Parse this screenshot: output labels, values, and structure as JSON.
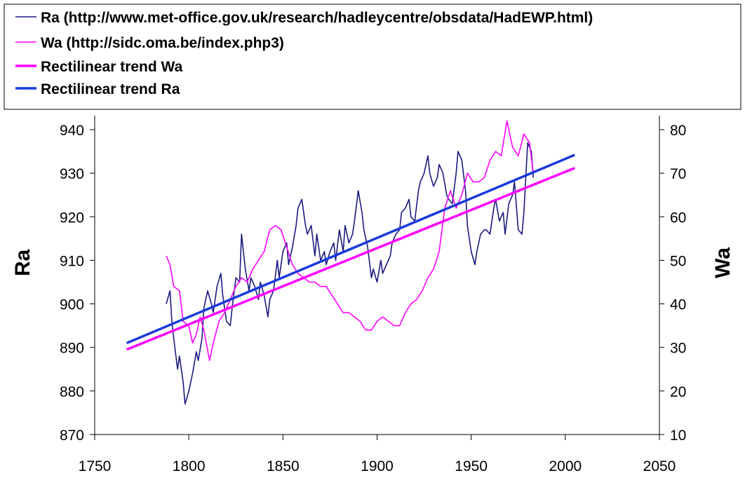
{
  "chart_data": {
    "type": "line",
    "xlim": [
      1750,
      2050
    ],
    "x_ticks": [
      "1750",
      "1800",
      "1850",
      "1900",
      "1950",
      "2000",
      "2050"
    ],
    "y_left": {
      "label": "Ra",
      "lim": [
        870,
        940
      ],
      "ticks": [
        "870",
        "880",
        "890",
        "900",
        "910",
        "920",
        "930",
        "940"
      ]
    },
    "y_right": {
      "label": "Wa",
      "lim": [
        10,
        80
      ],
      "ticks": [
        "10",
        "20",
        "30",
        "40",
        "50",
        "60",
        "70",
        "80"
      ]
    },
    "grid": false,
    "legend_placement": "top",
    "series": [
      {
        "name": "Ra (http://www.met-office.gov.uk/research/hadleycentre/obsdata/HadEWP.html)",
        "axis": "left",
        "color": "#1a1a80",
        "x": [
          1788,
          1790,
          1791,
          1792,
          1794,
          1795,
          1797,
          1798,
          1800,
          1802,
          1804,
          1805,
          1807,
          1808,
          1810,
          1812,
          1813,
          1815,
          1817,
          1818,
          1820,
          1822,
          1823,
          1825,
          1827,
          1828,
          1830,
          1832,
          1833,
          1835,
          1837,
          1838,
          1840,
          1842,
          1843,
          1845,
          1847,
          1848,
          1850,
          1852,
          1853,
          1855,
          1857,
          1858,
          1860,
          1862,
          1863,
          1865,
          1867,
          1868,
          1870,
          1872,
          1873,
          1875,
          1877,
          1878,
          1880,
          1882,
          1883,
          1885,
          1887,
          1888,
          1890,
          1892,
          1893,
          1895,
          1897,
          1898,
          1900,
          1902,
          1903,
          1905,
          1907,
          1908,
          1910,
          1912,
          1913,
          1915,
          1917,
          1918,
          1920,
          1922,
          1923,
          1925,
          1927,
          1928,
          1930,
          1932,
          1933,
          1935,
          1937,
          1938,
          1940,
          1942,
          1943,
          1945,
          1947,
          1948,
          1950,
          1952,
          1953,
          1955,
          1957,
          1958,
          1960,
          1962,
          1963,
          1965,
          1967,
          1968,
          1970,
          1972,
          1973,
          1975,
          1977,
          1978,
          1980,
          1982,
          1983
        ],
        "y": [
          900,
          903,
          896,
          892,
          885,
          888,
          882,
          877,
          880,
          884,
          889,
          887,
          892,
          899,
          903,
          900,
          898,
          904,
          907,
          902,
          896,
          895,
          899,
          906,
          905,
          916,
          908,
          903,
          906,
          904,
          901,
          905,
          902,
          897,
          901,
          903,
          910,
          906,
          912,
          914,
          909,
          913,
          918,
          922,
          924,
          918,
          916,
          918,
          911,
          916,
          910,
          912,
          909,
          912,
          914,
          910,
          917,
          912,
          918,
          914,
          916,
          919,
          926,
          921,
          917,
          913,
          906,
          908,
          905,
          910,
          907,
          909,
          911,
          914,
          916,
          917,
          921,
          922,
          924,
          920,
          919,
          926,
          928,
          930,
          934,
          930,
          927,
          929,
          932,
          930,
          925,
          924,
          923,
          930,
          935,
          933,
          926,
          918,
          912,
          909,
          912,
          916,
          917,
          917,
          916,
          922,
          924,
          919,
          921,
          916,
          923,
          925,
          928,
          917,
          916,
          921,
          937,
          935,
          929
        ]
      },
      {
        "name": "Wa (http://sidc.oma.be/index.php3)",
        "axis": "right",
        "color": "#ff00ff",
        "x": [
          1788,
          1790,
          1792,
          1795,
          1797,
          1800,
          1802,
          1804,
          1806,
          1808,
          1811,
          1813,
          1816,
          1819,
          1822,
          1825,
          1828,
          1831,
          1834,
          1837,
          1840,
          1843,
          1846,
          1849,
          1852,
          1855,
          1858,
          1861,
          1864,
          1867,
          1870,
          1873,
          1876,
          1879,
          1882,
          1885,
          1888,
          1891,
          1894,
          1897,
          1900,
          1903,
          1906,
          1909,
          1912,
          1915,
          1918,
          1921,
          1924,
          1927,
          1930,
          1933,
          1936,
          1939,
          1942,
          1945,
          1948,
          1951,
          1954,
          1957,
          1960,
          1963,
          1966,
          1969,
          1972,
          1975,
          1978,
          1981,
          1983
        ],
        "y": [
          51,
          49,
          44,
          43,
          36,
          35,
          31,
          33,
          37,
          34,
          27,
          31,
          36,
          38,
          41,
          44,
          46,
          45,
          48,
          50,
          52,
          57,
          58,
          57,
          53,
          49,
          47,
          46,
          45,
          45,
          44,
          44,
          42,
          40,
          38,
          38,
          37,
          36,
          34,
          34,
          36,
          37,
          36,
          35,
          35,
          38,
          40,
          41,
          43,
          46,
          48,
          52,
          62,
          66,
          62,
          65,
          70,
          68,
          68,
          69,
          73,
          75,
          74,
          82,
          76,
          74,
          79,
          77,
          70
        ]
      },
      {
        "name": "Rectilinear trend Wa",
        "axis": "right",
        "color": "#ff00ff",
        "x": [
          1767,
          2005
        ],
        "y": [
          29.5,
          71.2
        ]
      },
      {
        "name": "Rectilinear trend Ra",
        "axis": "left",
        "color": "#1a3adb",
        "x": [
          1767,
          2005
        ],
        "y": [
          891,
          934.2
        ]
      }
    ]
  }
}
